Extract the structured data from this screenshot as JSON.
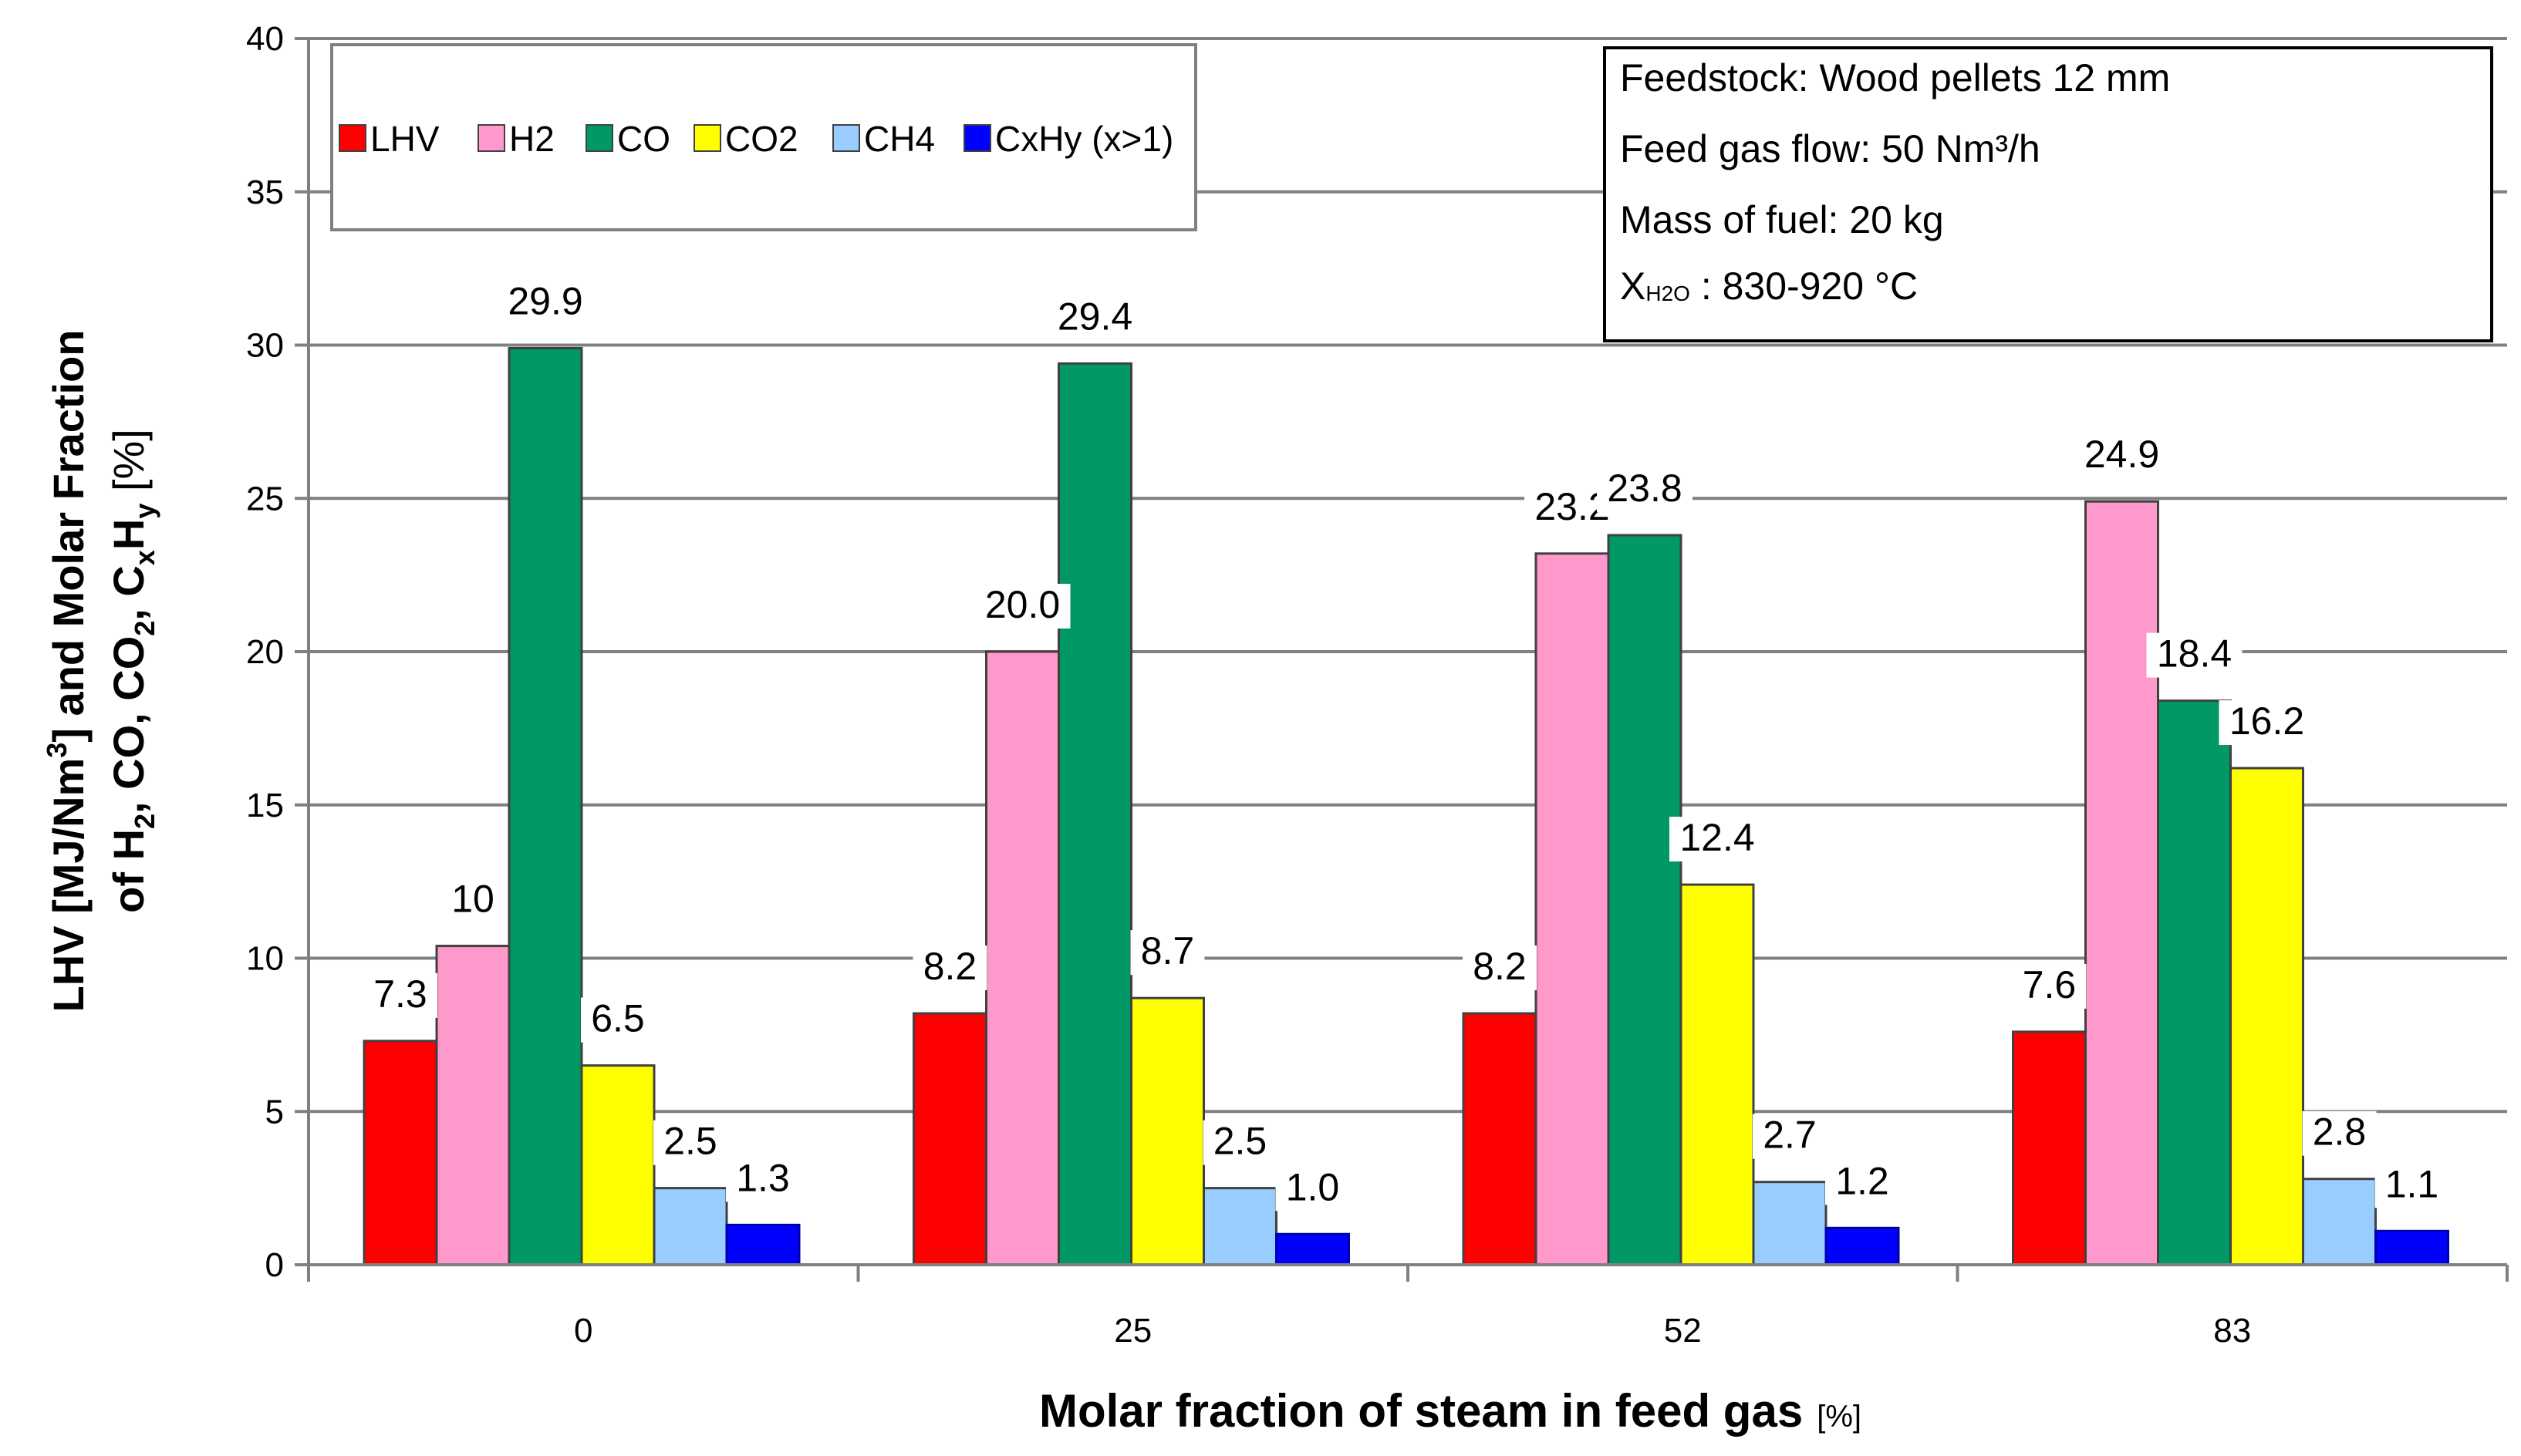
{
  "chart_data": {
    "type": "bar",
    "title": "",
    "xlabel": "Molar fraction of steam in feed gas",
    "xlabel_unit": "[%]",
    "ylabel": {
      "line1_a": "LHV  [MJ/Nm",
      "line1_sup": "3",
      "line1_b": "] and Molar Fraction",
      "line2_a": "of H",
      "line2_sub1": "2",
      "line2_b": ", CO, CO",
      "line2_sub2": "2",
      "line2_c": ", C",
      "line2_sub3": "x",
      "line2_d": "H",
      "line2_sub4": "y",
      "line2_e": "  [%]"
    },
    "ylim": [
      0,
      40
    ],
    "ytick_labels": [
      "0",
      "5",
      "10",
      "15",
      "20",
      "25",
      "30",
      "35",
      "40"
    ],
    "categories": [
      "0",
      "25",
      "52",
      "83"
    ],
    "series": [
      {
        "name": "LHV",
        "color": "#ff0000",
        "values": [
          7.3,
          8.2,
          8.2,
          7.6
        ],
        "labels": [
          "7.3",
          "8.2",
          "8.2",
          "7.6"
        ]
      },
      {
        "name": "H2",
        "color": "#ff99cc",
        "values": [
          10.4,
          20.0,
          23.2,
          24.9
        ],
        "labels": [
          "10",
          "20.0",
          "23.2",
          "24.9"
        ]
      },
      {
        "name": "CO",
        "color": "#009966",
        "values": [
          29.9,
          29.4,
          23.8,
          18.4
        ],
        "labels": [
          "29.9",
          "29.4",
          "23.8",
          "18.4"
        ]
      },
      {
        "name": "CO2",
        "color": "#ffff00",
        "values": [
          6.5,
          8.7,
          12.4,
          16.2
        ],
        "labels": [
          "6.5",
          "8.7",
          "12.4",
          "16.2"
        ]
      },
      {
        "name": "CH4",
        "color": "#99ccff",
        "values": [
          2.5,
          2.5,
          2.7,
          2.8
        ],
        "labels": [
          "2.5",
          "2.5",
          "2.7",
          "2.8"
        ]
      },
      {
        "name": "CxHy (x>1)",
        "color": "#0000ff",
        "values": [
          1.3,
          1.0,
          1.2,
          1.1
        ],
        "labels": [
          "1.3",
          "1.0",
          "1.2",
          "1.1"
        ]
      }
    ],
    "grid": true,
    "legend_position": "top-left",
    "info_box": {
      "line1": "Feedstock: Wood pellets 12 mm",
      "line2": "Feed gas flow: 50 Nm³/h",
      "line3": "Mass of fuel: 20 kg",
      "line4_x": "X",
      "line4_sub": "H2O",
      "line4_rest": " : 830-920 °C"
    }
  }
}
